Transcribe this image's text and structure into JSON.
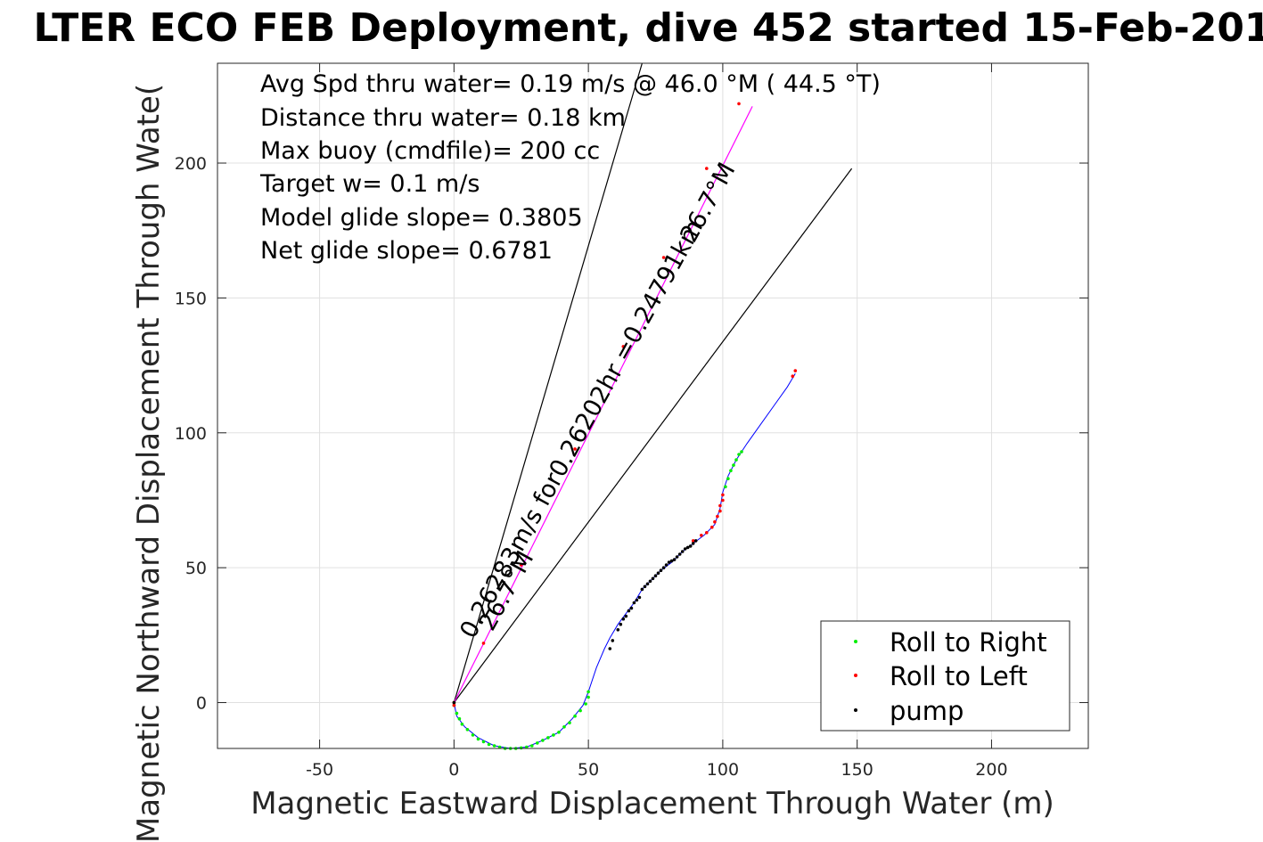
{
  "chart_data": {
    "type": "scatter",
    "title": "LTER ECO FEB Deployment, dive 452 started 15-Feb-201",
    "xlabel": "Magnetic Eastward Displacement Through Water (m)",
    "ylabel": "Magnetic Northward Displacement Through Wate(",
    "xlim": [
      -88,
      236
    ],
    "ylim": [
      -17,
      237
    ],
    "xticks": [
      -50,
      0,
      50,
      100,
      150,
      200
    ],
    "yticks": [
      0,
      50,
      100,
      150,
      200
    ],
    "xtick_labels": [
      "-50",
      "0",
      "50",
      "100",
      "150",
      "200"
    ],
    "ytick_labels": [
      "0",
      "50",
      "100",
      "150",
      "200"
    ],
    "grid": true,
    "legend_position": "bottom-right",
    "stats": [
      "Avg Spd thru water=  0.19 m/s @  46.0 °M ( 44.5 °T)",
      "Distance thru water=  0.18 km",
      "Max buoy (cmdfile)= 200 cc",
      "Target w= 0.1 m/s",
      "Model glide slope= 0.3805",
      "Net glide slope= 0.6781"
    ],
    "track": {
      "color": "#0000ff",
      "points": [
        [
          0,
          0
        ],
        [
          1,
          -5
        ],
        [
          4,
          -9
        ],
        [
          9,
          -13
        ],
        [
          15,
          -16
        ],
        [
          21,
          -17
        ],
        [
          27,
          -16.5
        ],
        [
          33,
          -14
        ],
        [
          39,
          -11
        ],
        [
          44,
          -6
        ],
        [
          48,
          -1
        ],
        [
          50,
          4
        ],
        [
          53,
          13
        ],
        [
          56,
          20
        ],
        [
          58,
          24
        ],
        [
          61,
          29
        ],
        [
          64,
          33
        ],
        [
          67,
          37
        ],
        [
          70,
          42
        ],
        [
          73,
          45
        ],
        [
          77,
          49
        ],
        [
          81,
          52
        ],
        [
          85,
          56
        ],
        [
          89,
          59
        ],
        [
          93,
          62
        ],
        [
          97,
          66
        ],
        [
          99,
          72
        ],
        [
          100,
          78
        ],
        [
          102,
          84
        ],
        [
          105,
          90
        ],
        [
          109,
          96
        ],
        [
          114,
          103
        ],
        [
          119,
          110
        ],
        [
          124,
          117
        ],
        [
          127,
          122
        ]
      ]
    },
    "series": [
      {
        "name": "Roll to Right",
        "color": "#00ee00",
        "points": [
          [
            0,
            -1
          ],
          [
            1,
            -4
          ],
          [
            2,
            -6
          ],
          [
            3,
            -8
          ],
          [
            5,
            -10
          ],
          [
            7,
            -12
          ],
          [
            9,
            -13.5
          ],
          [
            11,
            -14.5
          ],
          [
            13,
            -15.5
          ],
          [
            15,
            -16
          ],
          [
            17,
            -16.5
          ],
          [
            19,
            -17
          ],
          [
            21,
            -17
          ],
          [
            23,
            -17
          ],
          [
            25,
            -16.8
          ],
          [
            27,
            -16.5
          ],
          [
            29,
            -16
          ],
          [
            31,
            -15
          ],
          [
            33,
            -14
          ],
          [
            35,
            -13
          ],
          [
            37,
            -12
          ],
          [
            39,
            -11
          ],
          [
            41,
            -9
          ],
          [
            43,
            -7.5
          ],
          [
            45,
            -5
          ],
          [
            47,
            -3
          ],
          [
            49,
            -0.5
          ],
          [
            50,
            2
          ],
          [
            50,
            4
          ],
          [
            101,
            80
          ],
          [
            102,
            83
          ],
          [
            103,
            86
          ],
          [
            104,
            88
          ],
          [
            105,
            90
          ],
          [
            106,
            92
          ],
          [
            107,
            93
          ]
        ]
      },
      {
        "name": "Roll to Left",
        "color": "#ff0000",
        "points": [
          [
            0,
            0
          ],
          [
            0,
            -1
          ],
          [
            11,
            22
          ],
          [
            25,
            51
          ],
          [
            45,
            94
          ],
          [
            63,
            132
          ],
          [
            78,
            165
          ],
          [
            94,
            198
          ],
          [
            106,
            222
          ],
          [
            89,
            60
          ],
          [
            92,
            62
          ],
          [
            94,
            63
          ],
          [
            96,
            65
          ],
          [
            97,
            67
          ],
          [
            98,
            69
          ],
          [
            99,
            71
          ],
          [
            99,
            73
          ],
          [
            100,
            75
          ],
          [
            100,
            77
          ],
          [
            126,
            121
          ],
          [
            127,
            123
          ]
        ]
      },
      {
        "name": "pump",
        "color": "#000000",
        "points": [
          [
            0,
            0
          ],
          [
            58,
            20
          ],
          [
            59,
            23
          ],
          [
            61,
            27
          ],
          [
            62,
            29
          ],
          [
            63,
            31
          ],
          [
            64,
            32
          ],
          [
            65,
            34
          ],
          [
            66,
            35
          ],
          [
            67,
            37
          ],
          [
            68,
            38
          ],
          [
            69,
            39
          ],
          [
            70,
            42
          ],
          [
            71,
            43
          ],
          [
            72,
            44
          ],
          [
            73,
            45
          ],
          [
            74,
            46
          ],
          [
            75,
            47
          ],
          [
            76,
            48
          ],
          [
            77,
            49
          ],
          [
            78,
            50
          ],
          [
            79,
            51
          ],
          [
            80,
            52
          ],
          [
            81,
            52.5
          ],
          [
            82,
            53
          ],
          [
            83,
            54
          ],
          [
            84,
            55
          ],
          [
            85,
            56
          ],
          [
            86,
            57
          ],
          [
            87,
            57.5
          ],
          [
            88,
            58
          ],
          [
            89,
            59
          ],
          [
            90,
            60
          ]
        ]
      }
    ],
    "reference_lines": [
      {
        "color": "#000000",
        "points": [
          [
            0,
            0
          ],
          [
            70,
            237
          ]
        ]
      },
      {
        "color": "#000000",
        "points": [
          [
            0,
            0
          ],
          [
            148,
            198
          ]
        ]
      },
      {
        "color": "#ff00ff",
        "points": [
          [
            0,
            0
          ],
          [
            111,
            221
          ]
        ]
      }
    ],
    "annotations": [
      {
        "text": "0.26283m/s for0.26202hr =0.24791km",
        "x": 50,
        "y": 100,
        "rotation": -61
      },
      {
        "text": "26.7°M",
        "x": 97,
        "y": 184,
        "rotation": -61
      },
      {
        "text": "26.7°M",
        "x": 22,
        "y": 40,
        "rotation": -61
      }
    ]
  }
}
